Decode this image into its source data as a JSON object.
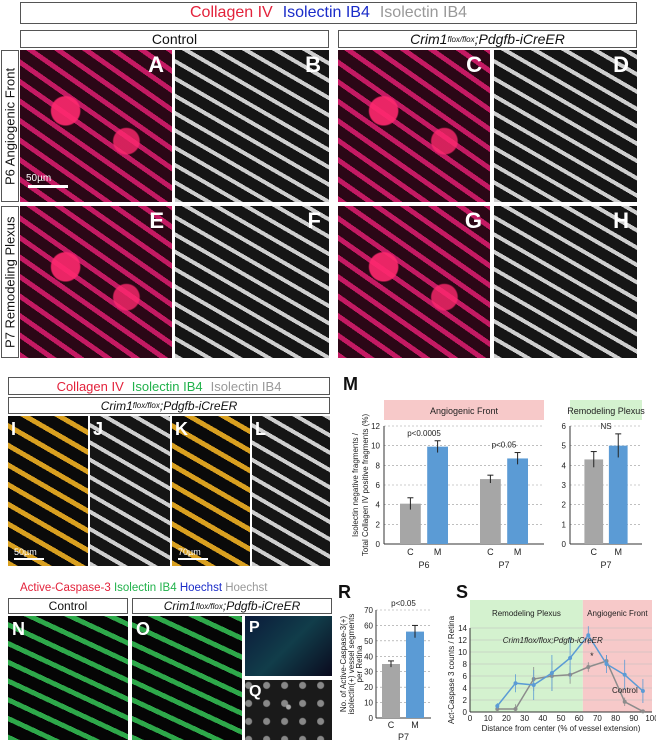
{
  "top_legend": {
    "collagen": "Collagen IV",
    "isolectin_blue": "Isolectin IB4",
    "isolectin_grey": "Isolectin IB4"
  },
  "headers": {
    "control": "Control",
    "mutant_gene": "Crim1",
    "mutant_sup": "flox/flox",
    "mutant_rest": ";Pdgfb-iCreER"
  },
  "row_labels": {
    "p6": "P6 Angiogenic Front",
    "p7": "P7 Remodeling Plexus"
  },
  "panel_letters": {
    "A": "A",
    "B": "B",
    "C": "C",
    "D": "D",
    "E": "E",
    "F": "F",
    "G": "G",
    "H": "H",
    "I": "I",
    "J": "J",
    "K": "K",
    "L": "L",
    "M": "M",
    "N": "N",
    "O": "O",
    "P": "P",
    "Q": "Q",
    "R": "R",
    "S": "S"
  },
  "scale_bars": {
    "a": "50µm",
    "i": "50µm",
    "k": "70µm"
  },
  "mid_legend": {
    "collagen": "Collagen IV",
    "isolectin_green": "Isolectin IB4",
    "isolectin_grey": "Isolectin IB4"
  },
  "mid_header": {
    "gene": "Crim1",
    "sup": "flox/flox",
    "rest": ";Pdgfb-iCreER"
  },
  "bottom_legend": {
    "caspase": "Active-Caspase-3",
    "isolectin": "Isolectin IB4",
    "hoechst_blue": "Hoechst",
    "hoechst_grey": "Hoechst"
  },
  "bottom_headers": {
    "control": "Control",
    "gene": "Crim1",
    "sup": "flox/flox",
    "rest": ";Pdgfb-iCreER"
  },
  "colors": {
    "control_bar": "#a6a6a6",
    "mutant_bar": "#5b9bd5",
    "angiogenic_bg": "#f7c9c9",
    "remodeling_bg": "#d4f2cf"
  },
  "chart_data": [
    {
      "type": "bar",
      "id": "M-left",
      "title": "Angiogenic Front",
      "ylabel": "Isolectin negative fragments / Total Collagen IV positive fragments (%)",
      "ylim": [
        0,
        12
      ],
      "yticks": [
        0,
        2,
        4,
        6,
        8,
        10,
        12
      ],
      "groups": [
        "P6",
        "P7"
      ],
      "categories": [
        "C",
        "M"
      ],
      "values": [
        [
          4.1,
          9.9
        ],
        [
          6.6,
          8.7
        ]
      ],
      "errors": [
        [
          0.6,
          0.6
        ],
        [
          0.4,
          0.6
        ]
      ],
      "annotations": [
        "p<0.0005",
        "p<0.05"
      ]
    },
    {
      "type": "bar",
      "id": "M-right",
      "title": "Remodeling Plexus",
      "ylim": [
        0,
        6
      ],
      "yticks": [
        0,
        1,
        2,
        3,
        4,
        5,
        6
      ],
      "groups": [
        "P7"
      ],
      "categories": [
        "C",
        "M"
      ],
      "values": [
        [
          4.3,
          5.0
        ]
      ],
      "errors": [
        [
          0.4,
          0.6
        ]
      ],
      "annotations": [
        "NS"
      ]
    },
    {
      "type": "bar",
      "id": "R",
      "ylabel": "No. of Active-Caspase-3(+) isolectin(+) vessel segments per Retina",
      "ylim": [
        0,
        70
      ],
      "yticks": [
        0,
        10,
        20,
        30,
        40,
        50,
        60,
        70
      ],
      "groups": [
        "P7"
      ],
      "categories": [
        "C",
        "M"
      ],
      "values": [
        [
          35,
          56
        ]
      ],
      "errors": [
        [
          2,
          4
        ]
      ],
      "annotations": [
        "p<0.05"
      ]
    },
    {
      "type": "line",
      "id": "S",
      "ylabel": "Act-Caspase 3 counts / Retina",
      "xlabel": "Distance from center (% of vessel extension)",
      "xlim": [
        0,
        100
      ],
      "ylim": [
        0,
        14
      ],
      "xticks": [
        0,
        10,
        20,
        30,
        40,
        50,
        60,
        70,
        80,
        90,
        100
      ],
      "yticks": [
        0,
        2,
        4,
        6,
        8,
        10,
        12,
        14
      ],
      "regions": [
        {
          "label": "Remodeling Plexus",
          "from": 0,
          "to": 62
        },
        {
          "label": "Angiogenic Front",
          "from": 62,
          "to": 100
        }
      ],
      "series": [
        {
          "name": "Control",
          "x": [
            15,
            25,
            35,
            45,
            55,
            65,
            75,
            85,
            95
          ],
          "y": [
            0.5,
            0.5,
            5.5,
            6.0,
            6.2,
            7.5,
            8.5,
            1.7,
            0.1
          ],
          "err": [
            0.5,
            0.8,
            2.0,
            2.5,
            1.5,
            0.8,
            1.0,
            0.7,
            0.2
          ]
        },
        {
          "name": "Crim1flox/flox;Pdgfb-iCreER",
          "x": [
            15,
            25,
            35,
            45,
            55,
            65,
            75,
            85,
            95
          ],
          "y": [
            1.0,
            4.8,
            4.5,
            6.5,
            9.0,
            12.8,
            8.0,
            6.2,
            3.5
          ],
          "err": [
            0.5,
            1.5,
            2.5,
            3.0,
            3.5,
            1.5,
            1.5,
            2.5,
            2.0
          ]
        }
      ],
      "annotations": [
        "*"
      ]
    }
  ]
}
